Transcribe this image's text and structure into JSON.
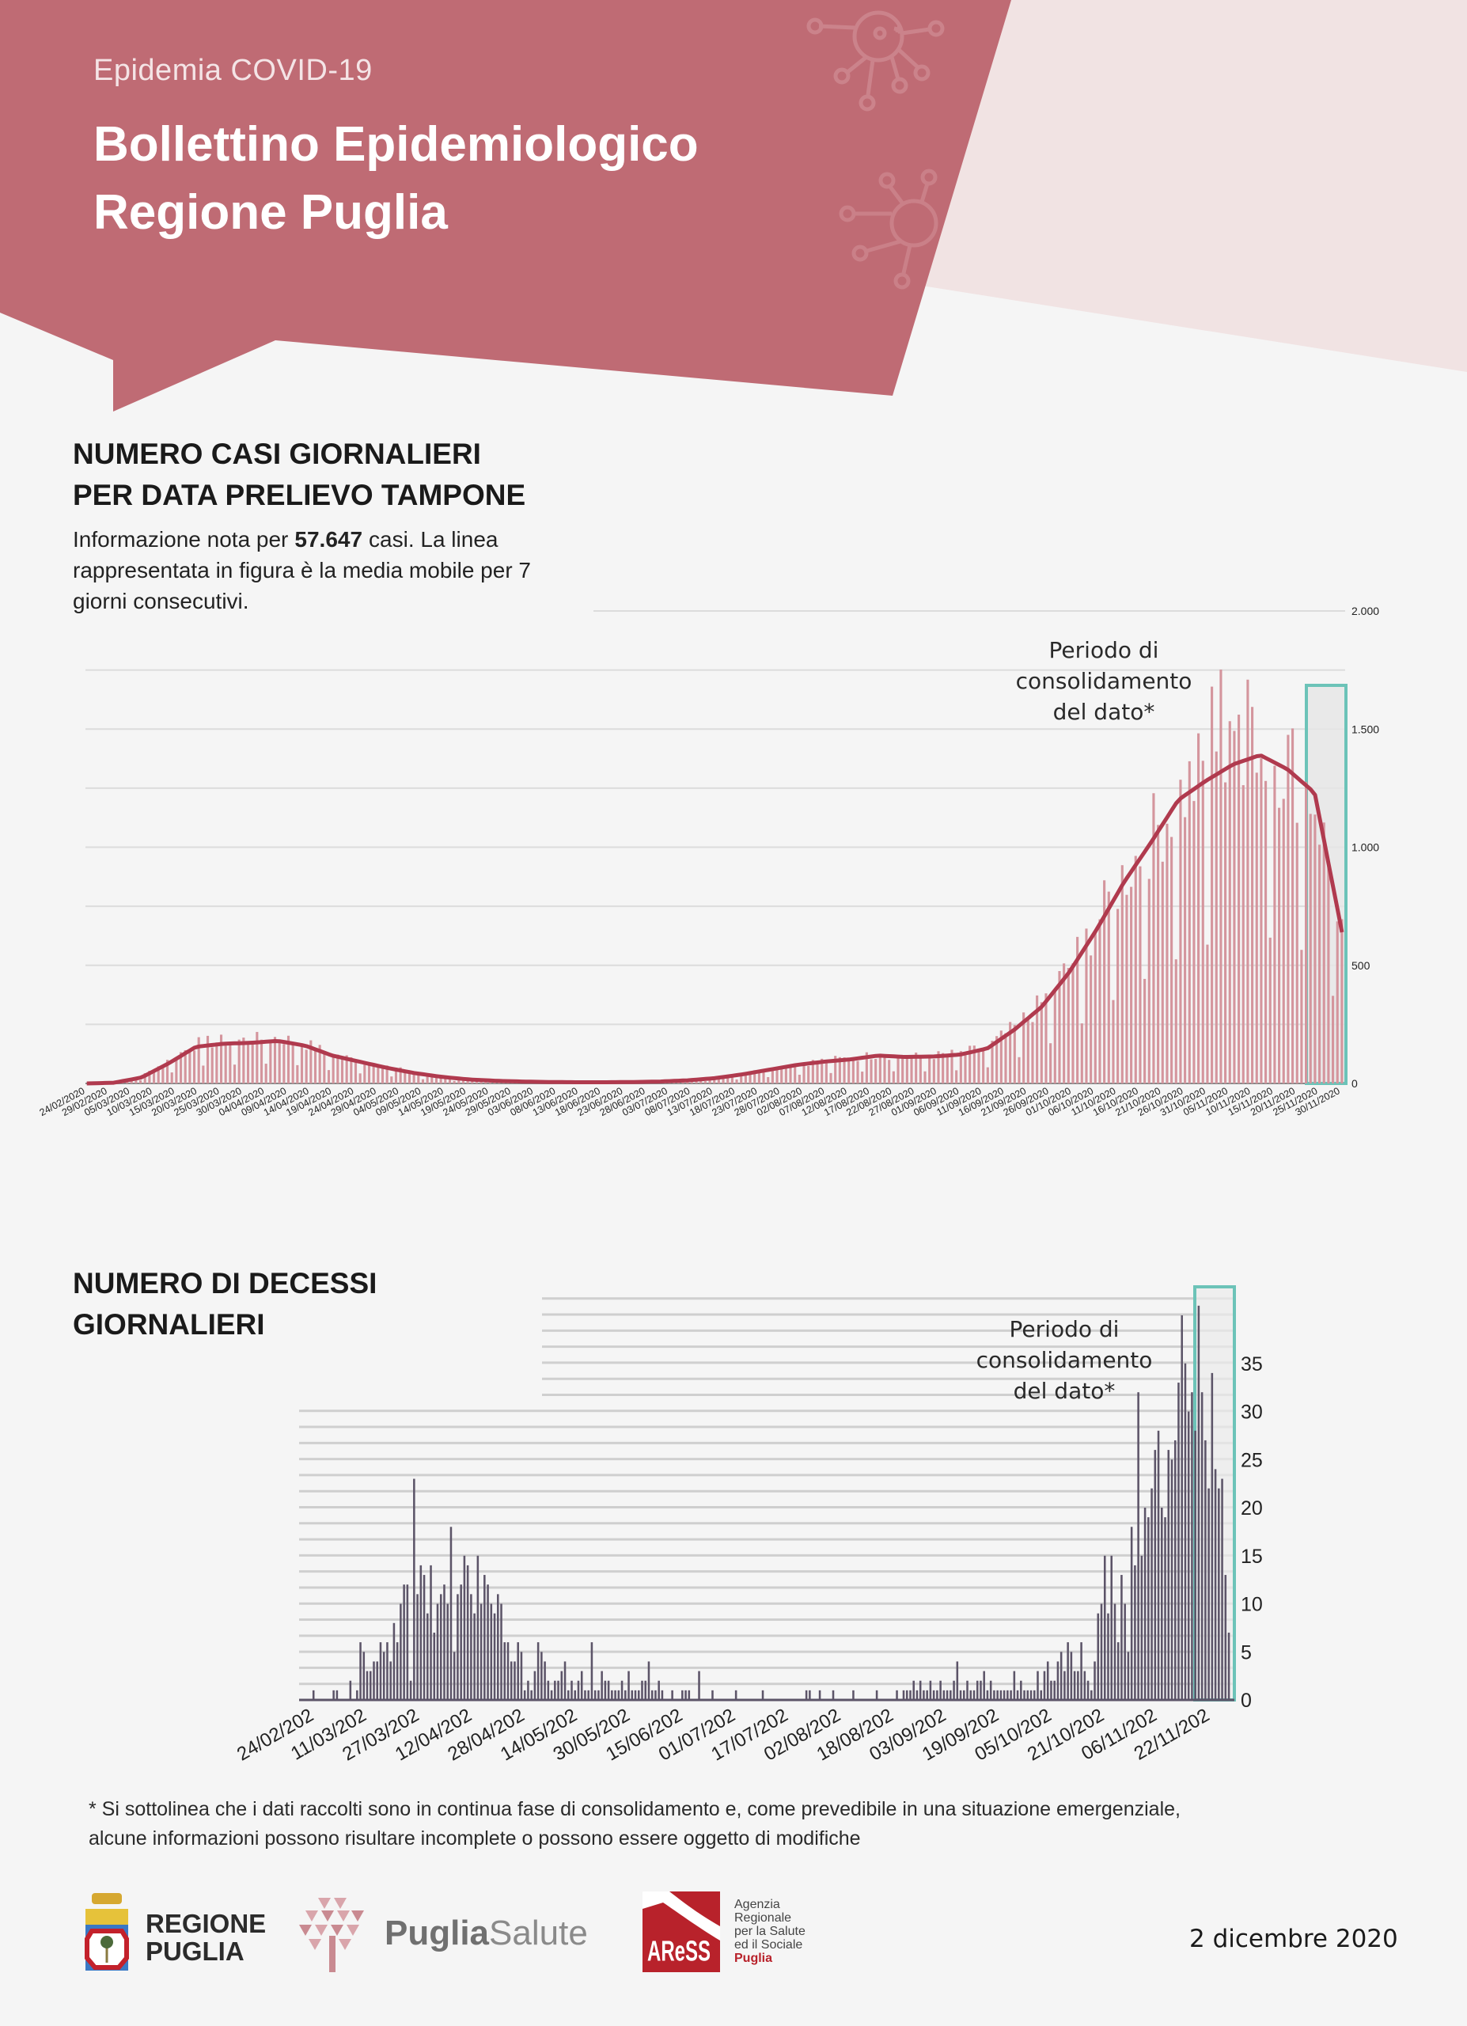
{
  "header": {
    "kicker": "Epidemia COVID-19",
    "title_line1": "Bollettino Epidemiologico",
    "title_line2": "Regione Puglia",
    "colors": {
      "banner": "#bf6b74",
      "banner_light": "#f1e3e3",
      "background": "#f5f5f5"
    },
    "decor_icons": [
      "virus-icon",
      "virus-icon"
    ]
  },
  "section_cases": {
    "title_line1": "NUMERO CASI GIORNALIERI",
    "title_line2": "PER DATA PRELIEVO TAMPONE",
    "intro_pre": "Informazione nota per",
    "intro_number": "57.647",
    "intro_post_line1": "casi. La linea",
    "intro_line2": "rappresentata in figura è la media mobile per 7",
    "intro_line3": "giorni consecutivi."
  },
  "section_deaths": {
    "title_line1": "NUMERO DI DECESSI",
    "title_line2": "GIORNALIERI"
  },
  "footnote": {
    "line1": "* Si sottolinea che i dati raccolti sono in continua fase di consolidamento e, come prevedibile in una situazione emergenziale,",
    "line2": "alcune informazioni possono risultare incomplete o possono essere oggetto di modifiche"
  },
  "footer": {
    "logo_regione_line1": "REGIONE",
    "logo_regione_line2": "PUGLIA",
    "logo_pugliasalute_bold": "Puglia",
    "logo_pugliasalute_light": "Salute",
    "logo_aress_mark": "AReSS",
    "logo_aress_desc": [
      "Agenzia",
      "Regionale",
      "per la Salute",
      "ed il Sociale"
    ],
    "logo_aress_region": "Puglia",
    "date": "2 dicembre 2020"
  },
  "chart_data": [
    {
      "type": "bar",
      "title": "NUMERO CASI GIORNALIERI PER DATA PRELIEVO TAMPONE",
      "series": [
        {
          "name": "Casi giornalieri",
          "kind": "bar",
          "color": "#d4959d"
        },
        {
          "name": "Media mobile 7 giorni",
          "kind": "line",
          "color": "#b03a4e"
        }
      ],
      "ylim": [
        0,
        2000
      ],
      "yticks": [
        0,
        500,
        1000,
        1500,
        2000
      ],
      "ytick_labels": [
        "0",
        "500",
        "1.000",
        "1.500",
        "2.000"
      ],
      "grid_step": 250,
      "start_date": "24/02/2020",
      "end_date": "30/11/2020",
      "xtick_labels": [
        "24/02/2020",
        "29/02/2020",
        "05/03/2020",
        "10/03/2020",
        "15/03/2020",
        "20/03/2020",
        "25/03/2020",
        "30/03/2020",
        "04/04/2020",
        "09/04/2020",
        "14/04/2020",
        "19/04/2020",
        "24/04/2020",
        "29/04/2020",
        "04/05/2020",
        "09/05/2020",
        "14/05/2020",
        "19/05/2020",
        "24/05/2020",
        "29/05/2020",
        "03/06/2020",
        "08/06/2020",
        "13/06/2020",
        "18/06/2020",
        "23/06/2020",
        "28/06/2020",
        "03/07/2020",
        "08/07/2020",
        "13/07/2020",
        "18/07/2020",
        "23/07/2020",
        "28/07/2020",
        "02/08/2020",
        "07/08/2020",
        "12/08/2020",
        "17/08/2020",
        "22/08/2020",
        "27/08/2020",
        "01/09/2020",
        "06/09/2020",
        "11/09/2020",
        "16/09/2020",
        "21/09/2020",
        "26/09/2020",
        "01/10/2020",
        "06/10/2020",
        "11/10/2020",
        "16/10/2020",
        "21/10/2020",
        "26/10/2020",
        "31/10/2020",
        "05/11/2020",
        "10/11/2020",
        "15/11/2020",
        "20/11/2020",
        "25/11/2020",
        "30/11/2020"
      ],
      "weekly_values": [
        0,
        5,
        30,
        95,
        165,
        175,
        180,
        190,
        165,
        120,
        95,
        70,
        45,
        28,
        18,
        12,
        9,
        7,
        6,
        6,
        8,
        9,
        15,
        25,
        40,
        60,
        80,
        95,
        105,
        120,
        110,
        115,
        125,
        150,
        230,
        330,
        480,
        660,
        860,
        1020,
        1180,
        1300,
        1380,
        1390,
        1340,
        1180,
        650
      ],
      "moving_avg_points": [
        0,
        3,
        25,
        85,
        155,
        168,
        172,
        180,
        160,
        118,
        92,
        66,
        44,
        28,
        17,
        11,
        8,
        6,
        5,
        5,
        6,
        8,
        13,
        22,
        38,
        58,
        78,
        92,
        102,
        118,
        112,
        114,
        122,
        148,
        228,
        325,
        470,
        650,
        850,
        1020,
        1200,
        1280,
        1350,
        1390,
        1330,
        1230,
        640
      ],
      "annotation": "Periodo di consolidamento del dato*",
      "annotation_lines": [
        "Periodo di",
        "consolidamento",
        "del dato*"
      ],
      "highlight_color": "#6cc3b8",
      "consolidation_period": [
        "25/11/2020",
        "30/11/2020"
      ]
    },
    {
      "type": "bar",
      "title": "NUMERO DI DECESSI GIORNALIERI",
      "series": [
        {
          "name": "Decessi giornalieri",
          "color": "#5c5468"
        }
      ],
      "ylim": [
        0,
        40
      ],
      "yticks": [
        0,
        5,
        10,
        15,
        20,
        25,
        30,
        35
      ],
      "ytick_labels": [
        "0",
        "5",
        "10",
        "15",
        "20",
        "25",
        "30",
        "35"
      ],
      "grid_step": 1.67,
      "start_date": "24/02/2020",
      "xtick_labels": [
        "24/02/202",
        "11/03/202",
        "27/03/202",
        "12/04/202",
        "28/04/202",
        "14/05/202",
        "30/05/202",
        "15/06/202",
        "01/07/202",
        "17/07/202",
        "02/08/202",
        "18/08/202",
        "03/09/202",
        "19/09/202",
        "05/10/202",
        "21/10/202",
        "06/11/202",
        "22/11/202"
      ],
      "values": [
        0,
        0,
        0,
        0,
        1,
        0,
        0,
        0,
        0,
        0,
        1,
        1,
        0,
        0,
        0,
        2,
        0,
        1,
        6,
        5,
        3,
        3,
        4,
        4,
        6,
        5,
        6,
        4,
        8,
        6,
        10,
        12,
        12,
        2,
        23,
        11,
        14,
        13,
        9,
        14,
        7,
        10,
        11,
        12,
        10,
        18,
        5,
        11,
        12,
        15,
        14,
        11,
        9,
        15,
        10,
        13,
        12,
        10,
        9,
        11,
        10,
        6,
        6,
        4,
        4,
        6,
        5,
        1,
        2,
        1,
        3,
        6,
        5,
        4,
        2,
        1,
        2,
        2,
        3,
        4,
        1,
        2,
        1,
        2,
        3,
        1,
        1,
        6,
        1,
        1,
        3,
        2,
        2,
        1,
        1,
        1,
        2,
        1,
        3,
        1,
        1,
        1,
        2,
        2,
        4,
        1,
        1,
        2,
        1,
        0,
        0,
        1,
        0,
        0,
        1,
        1,
        1,
        0,
        0,
        3,
        0,
        0,
        0,
        1,
        0,
        0,
        0,
        0,
        0,
        0,
        1,
        0,
        0,
        0,
        0,
        0,
        0,
        0,
        1,
        0,
        0,
        0,
        0,
        0,
        0,
        0,
        0,
        0,
        0,
        0,
        0,
        1,
        1,
        0,
        0,
        1,
        0,
        0,
        0,
        1,
        0,
        0,
        0,
        0,
        0,
        1,
        0,
        0,
        0,
        0,
        0,
        0,
        1,
        0,
        0,
        0,
        0,
        0,
        1,
        0,
        1,
        1,
        1,
        2,
        1,
        2,
        1,
        1,
        2,
        1,
        1,
        2,
        1,
        1,
        1,
        2,
        4,
        1,
        1,
        2,
        1,
        1,
        2,
        2,
        3,
        1,
        2,
        1,
        1,
        1,
        1,
        1,
        1,
        3,
        1,
        2,
        1,
        1,
        1,
        1,
        3,
        1,
        3,
        4,
        2,
        2,
        4,
        5,
        3,
        6,
        5,
        3,
        3,
        6,
        3,
        2,
        1,
        4,
        9,
        10,
        15,
        9,
        15,
        10,
        6,
        13,
        10,
        5,
        18,
        14,
        32,
        15,
        20,
        19,
        22,
        26,
        28,
        20,
        19,
        26,
        25,
        27,
        33,
        40,
        35,
        30,
        32,
        28,
        41,
        32,
        27,
        22,
        34,
        24,
        22,
        23,
        13,
        7
      ],
      "annotation_lines": [
        "Periodo di",
        "consolidamento",
        "del dato*"
      ],
      "highlight_color": "#6cc3b8",
      "consolidation_period": [
        "24/11/2020",
        "30/11/2020"
      ]
    }
  ]
}
